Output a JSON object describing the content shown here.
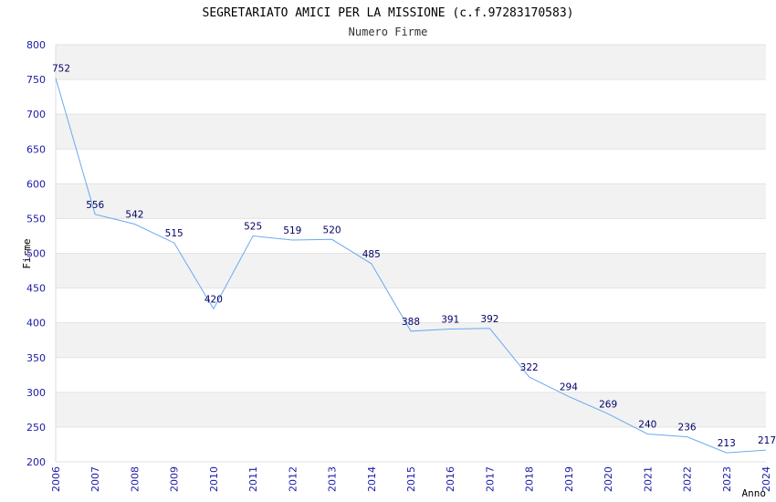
{
  "chart_data": {
    "type": "line",
    "title": "SEGRETARIATO AMICI PER LA MISSIONE (c.f.97283170583)",
    "subtitle": "Numero Firme",
    "xlabel": "Anno",
    "ylabel": "Firme",
    "ylim": [
      200,
      800
    ],
    "yticks": [
      200,
      250,
      300,
      350,
      400,
      450,
      500,
      550,
      600,
      650,
      700,
      750,
      800
    ],
    "grid": "horizontal alternating bands",
    "legend": "none",
    "x": [
      "2006",
      "2007",
      "2008",
      "2009",
      "2010",
      "2011",
      "2012",
      "2013",
      "2014",
      "2015",
      "2016",
      "2017",
      "2018",
      "2019",
      "2020",
      "2021",
      "2022",
      "2023",
      "2024"
    ],
    "series": [
      {
        "values": [
          752,
          556,
          542,
          515,
          420,
          525,
          519,
          520,
          485,
          388,
          391,
          392,
          322,
          294,
          269,
          240,
          236,
          213,
          217
        ]
      }
    ],
    "colors": {
      "line": "#6aaaf0",
      "band": "#f2f2f2",
      "tick": "#1a1aa6",
      "label": "#000066"
    }
  }
}
